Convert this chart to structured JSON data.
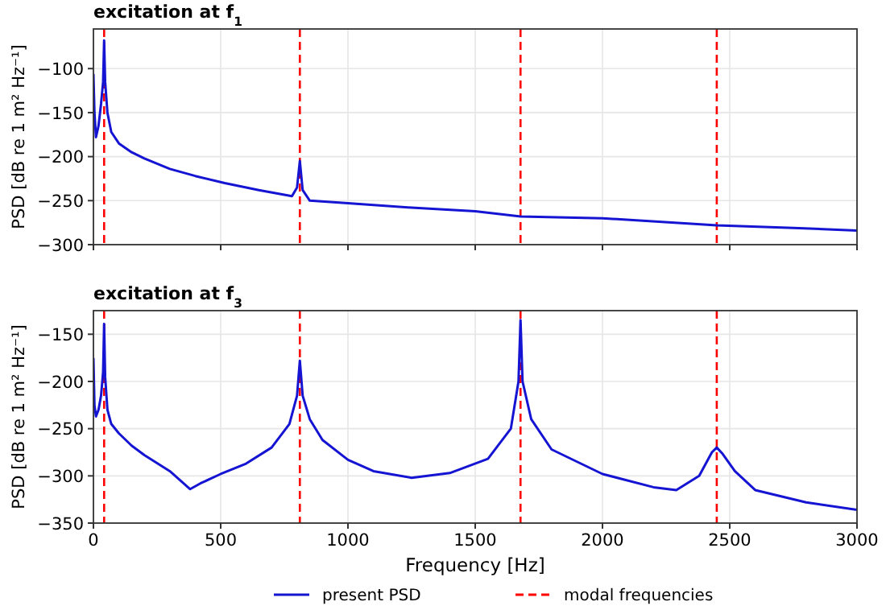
{
  "chart_data": [
    {
      "type": "line",
      "title": "excitation at f$_{1}$",
      "ylabel": "PSD [dB re 1 m² Hz⁻¹]",
      "xlim": [
        0,
        3000
      ],
      "xticks": [
        0,
        500,
        1000,
        1500,
        2000,
        2500,
        3000
      ],
      "ylim": [
        -300,
        -55
      ],
      "yticks": [
        -100,
        -150,
        -200,
        -250,
        -300
      ],
      "tick_labels": "y",
      "grid": true,
      "legend": false,
      "series": [
        {
          "color": "#1414d2",
          "x": [
            0,
            4,
            10,
            20,
            30,
            38,
            42,
            46,
            55,
            70,
            100,
            150,
            200,
            300,
            400,
            516,
            650,
            780,
            800,
            811,
            822,
            850,
            1000,
            1250,
            1500,
            1678,
            2000,
            2449,
            2750,
            3000
          ],
          "values": [
            -106,
            -150,
            -178,
            -165,
            -140,
            -115,
            -68,
            -115,
            -150,
            -172,
            -185,
            -195,
            -202,
            -214,
            -222,
            -230,
            -238,
            -245,
            -235,
            -205,
            -238,
            -250,
            -253,
            -258,
            -262,
            -268,
            -270,
            -278,
            -281,
            -284
          ]
        }
      ],
      "ref_lines": [
        {
          "axis": "x",
          "value": 42,
          "color": "#ff0000",
          "line_style": "dashed"
        },
        {
          "axis": "x",
          "value": 811,
          "color": "#ff0000",
          "line_style": "dashed"
        },
        {
          "axis": "x",
          "value": 1678,
          "color": "#ff0000",
          "line_style": "dashed"
        },
        {
          "axis": "x",
          "value": 2449,
          "color": "#ff0000",
          "line_style": "dashed"
        }
      ]
    },
    {
      "type": "line",
      "title": "excitation at f$_{3}$",
      "xlabel": "Frequency [Hz]",
      "ylabel": "PSD [dB re 1 m² Hz⁻¹]",
      "xlim": [
        0,
        3000
      ],
      "xticks": [
        0,
        500,
        1000,
        1500,
        2000,
        2500,
        3000
      ],
      "ylim": [
        -350,
        -125
      ],
      "yticks": [
        -150,
        -200,
        -250,
        -300,
        -350
      ],
      "grid": true,
      "legend": "bottom",
      "series": [
        {
          "name": "present PSD",
          "color": "#1414d2",
          "x": [
            0,
            4,
            10,
            20,
            30,
            38,
            42,
            46,
            55,
            70,
            100,
            150,
            200,
            300,
            380,
            420,
            500,
            600,
            700,
            770,
            800,
            811,
            822,
            850,
            900,
            1000,
            1100,
            1250,
            1400,
            1550,
            1640,
            1670,
            1678,
            1686,
            1720,
            1800,
            2000,
            2200,
            2290,
            2380,
            2430,
            2449,
            2470,
            2520,
            2600,
            2800,
            3000
          ],
          "values": [
            -175,
            -225,
            -237,
            -230,
            -215,
            -190,
            -139,
            -195,
            -230,
            -245,
            -255,
            -268,
            -278,
            -295,
            -314,
            -308,
            -298,
            -287,
            -270,
            -245,
            -215,
            -178,
            -215,
            -240,
            -262,
            -283,
            -295,
            -302,
            -297,
            -282,
            -250,
            -200,
            -135,
            -200,
            -240,
            -272,
            -298,
            -312,
            -315,
            -300,
            -275,
            -270,
            -276,
            -295,
            -315,
            -328,
            -336
          ]
        }
      ],
      "ref_lines": [
        {
          "axis": "x",
          "value": 42,
          "label": "modal frequencies",
          "color": "#ff0000",
          "line_style": "dashed"
        },
        {
          "axis": "x",
          "value": 811,
          "color": "#ff0000",
          "line_style": "dashed"
        },
        {
          "axis": "x",
          "value": 1678,
          "color": "#ff0000",
          "line_style": "dashed"
        },
        {
          "axis": "x",
          "value": 2449,
          "color": "#ff0000",
          "line_style": "dashed"
        }
      ]
    }
  ]
}
